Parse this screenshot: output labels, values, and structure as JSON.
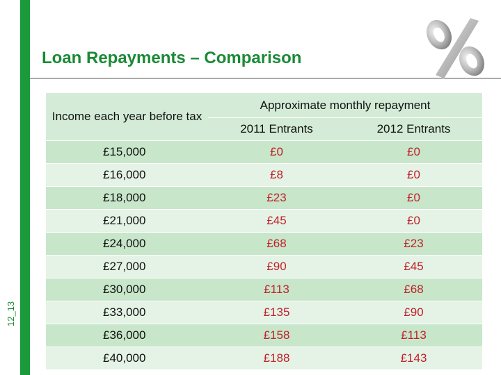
{
  "slide": {
    "number": "12_13",
    "title": "Loan Repayments – Comparison",
    "icon": "percent-icon"
  },
  "table": {
    "income_header": "Income each year before tax",
    "approx_header": "Approximate monthly repayment",
    "col_2011": "2011 Entrants",
    "col_2012": "2012 Entrants",
    "rows": [
      {
        "income": "£15,000",
        "y2011": "£0",
        "y2012": "£0"
      },
      {
        "income": "£16,000",
        "y2011": "£8",
        "y2012": "£0"
      },
      {
        "income": "£18,000",
        "y2011": "£23",
        "y2012": "£0"
      },
      {
        "income": "£21,000",
        "y2011": "£45",
        "y2012": "£0"
      },
      {
        "income": "£24,000",
        "y2011": "£68",
        "y2012": "£23"
      },
      {
        "income": "£27,000",
        "y2011": "£90",
        "y2012": "£45"
      },
      {
        "income": "£30,000",
        "y2011": "£113",
        "y2012": "£68"
      },
      {
        "income": "£33,000",
        "y2011": "£135",
        "y2012": "£90"
      },
      {
        "income": "£36,000",
        "y2011": "£158",
        "y2012": "£113"
      },
      {
        "income": "£40,000",
        "y2011": "£188",
        "y2012": "£143"
      }
    ]
  },
  "colors": {
    "accent_green": "#1a9a3a",
    "value_red": "#c0202a",
    "row_dark": "#c8e6ca",
    "row_light": "#e5f3e6"
  }
}
